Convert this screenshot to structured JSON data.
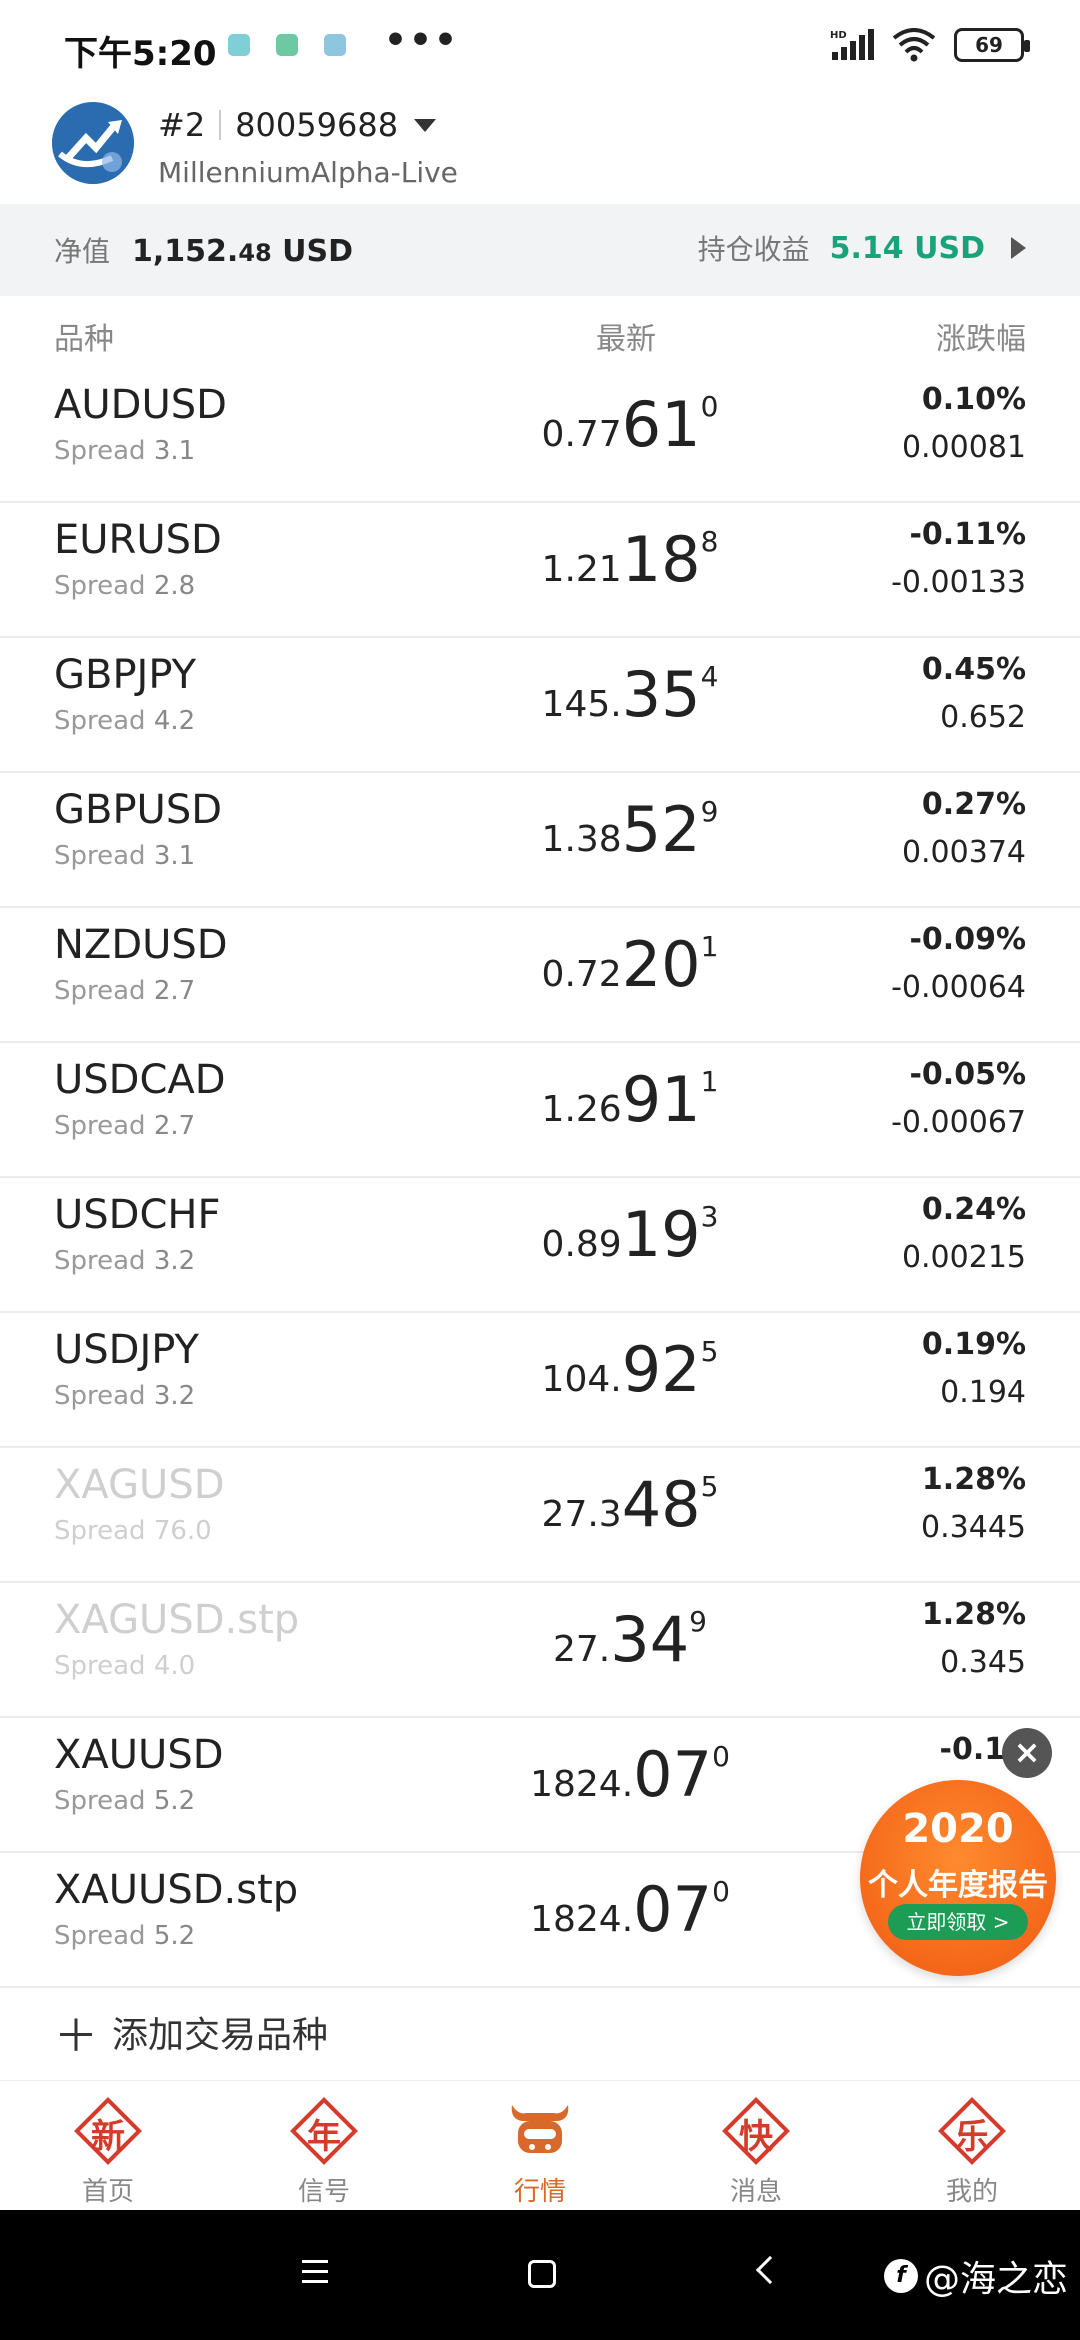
{
  "status_bar": {
    "time": "下午5:20",
    "dots": "•••",
    "hd_label": "HD",
    "battery": "69"
  },
  "account": {
    "index": "#2",
    "number": "80059688",
    "server": "MillenniumAlpha-Live"
  },
  "equity": {
    "label": "净值",
    "value_main": "1,152.",
    "value_small": "48",
    "currency": "USD",
    "pnl_label": "持仓收益",
    "pnl_value": "5.14 USD"
  },
  "columns": {
    "symbol": "品种",
    "last": "最新",
    "change": "涨跌幅"
  },
  "quotes": [
    {
      "symbol": "AUDUSD",
      "spread_label": "Spread",
      "spread": "3.1",
      "price_pre": "0.77",
      "price_big": "61",
      "price_sup": "0",
      "change_pct": "0.10%",
      "change_abs": "0.00081"
    },
    {
      "symbol": "EURUSD",
      "spread_label": "Spread",
      "spread": "2.8",
      "price_pre": "1.21",
      "price_big": "18",
      "price_sup": "8",
      "change_pct": "-0.11%",
      "change_abs": "-0.00133"
    },
    {
      "symbol": "GBPJPY",
      "spread_label": "Spread",
      "spread": "4.2",
      "price_pre": "145.",
      "price_big": "35",
      "price_sup": "4",
      "change_pct": "0.45%",
      "change_abs": "0.652"
    },
    {
      "symbol": "GBPUSD",
      "spread_label": "Spread",
      "spread": "3.1",
      "price_pre": "1.38",
      "price_big": "52",
      "price_sup": "9",
      "change_pct": "0.27%",
      "change_abs": "0.00374"
    },
    {
      "symbol": "NZDUSD",
      "spread_label": "Spread",
      "spread": "2.7",
      "price_pre": "0.72",
      "price_big": "20",
      "price_sup": "1",
      "change_pct": "-0.09%",
      "change_abs": "-0.00064"
    },
    {
      "symbol": "USDCAD",
      "spread_label": "Spread",
      "spread": "2.7",
      "price_pre": "1.26",
      "price_big": "91",
      "price_sup": "1",
      "change_pct": "-0.05%",
      "change_abs": "-0.00067"
    },
    {
      "symbol": "USDCHF",
      "spread_label": "Spread",
      "spread": "3.2",
      "price_pre": "0.89",
      "price_big": "19",
      "price_sup": "3",
      "change_pct": "0.24%",
      "change_abs": "0.00215"
    },
    {
      "symbol": "USDJPY",
      "spread_label": "Spread",
      "spread": "3.2",
      "price_pre": "104.",
      "price_big": "92",
      "price_sup": "5",
      "change_pct": "0.19%",
      "change_abs": "0.194"
    },
    {
      "symbol": "XAGUSD",
      "spread_label": "Spread",
      "spread": "76.0",
      "price_pre": "27.3",
      "price_big": "48",
      "price_sup": "5",
      "change_pct": "1.28%",
      "change_abs": "0.3445"
    },
    {
      "symbol": "XAGUSD.stp",
      "spread_label": "Spread",
      "spread": "4.0",
      "price_pre": "27.",
      "price_big": "34",
      "price_sup": "9",
      "change_pct": "1.28%",
      "change_abs": "0.345"
    },
    {
      "symbol": "XAUUSD",
      "spread_label": "Spread",
      "spread": "5.2",
      "price_pre": "1824.",
      "price_big": "07",
      "price_sup": "0",
      "change_pct": "-0.12",
      "change_abs": ""
    },
    {
      "symbol": "XAUUSD.stp",
      "spread_label": "Spread",
      "spread": "5.2",
      "price_pre": "1824.",
      "price_big": "07",
      "price_sup": "0",
      "change_pct": "",
      "change_abs": ""
    }
  ],
  "add_symbol": "添加交易品种",
  "promo": {
    "year": "2020",
    "title": "个人年度报告",
    "button": "立即领取 >"
  },
  "nav": [
    {
      "glyph": "新",
      "label": "首页"
    },
    {
      "glyph": "年",
      "label": "信号"
    },
    {
      "glyph": "",
      "label": "行情"
    },
    {
      "glyph": "快",
      "label": "消息"
    },
    {
      "glyph": "乐",
      "label": "我的"
    }
  ],
  "watermark": "@海之恋",
  "colors": {
    "accent_green": "#1aa37a",
    "nav_red": "#d43b2b",
    "nav_active": "#d9692a",
    "promo_orange": "#f05a12"
  }
}
